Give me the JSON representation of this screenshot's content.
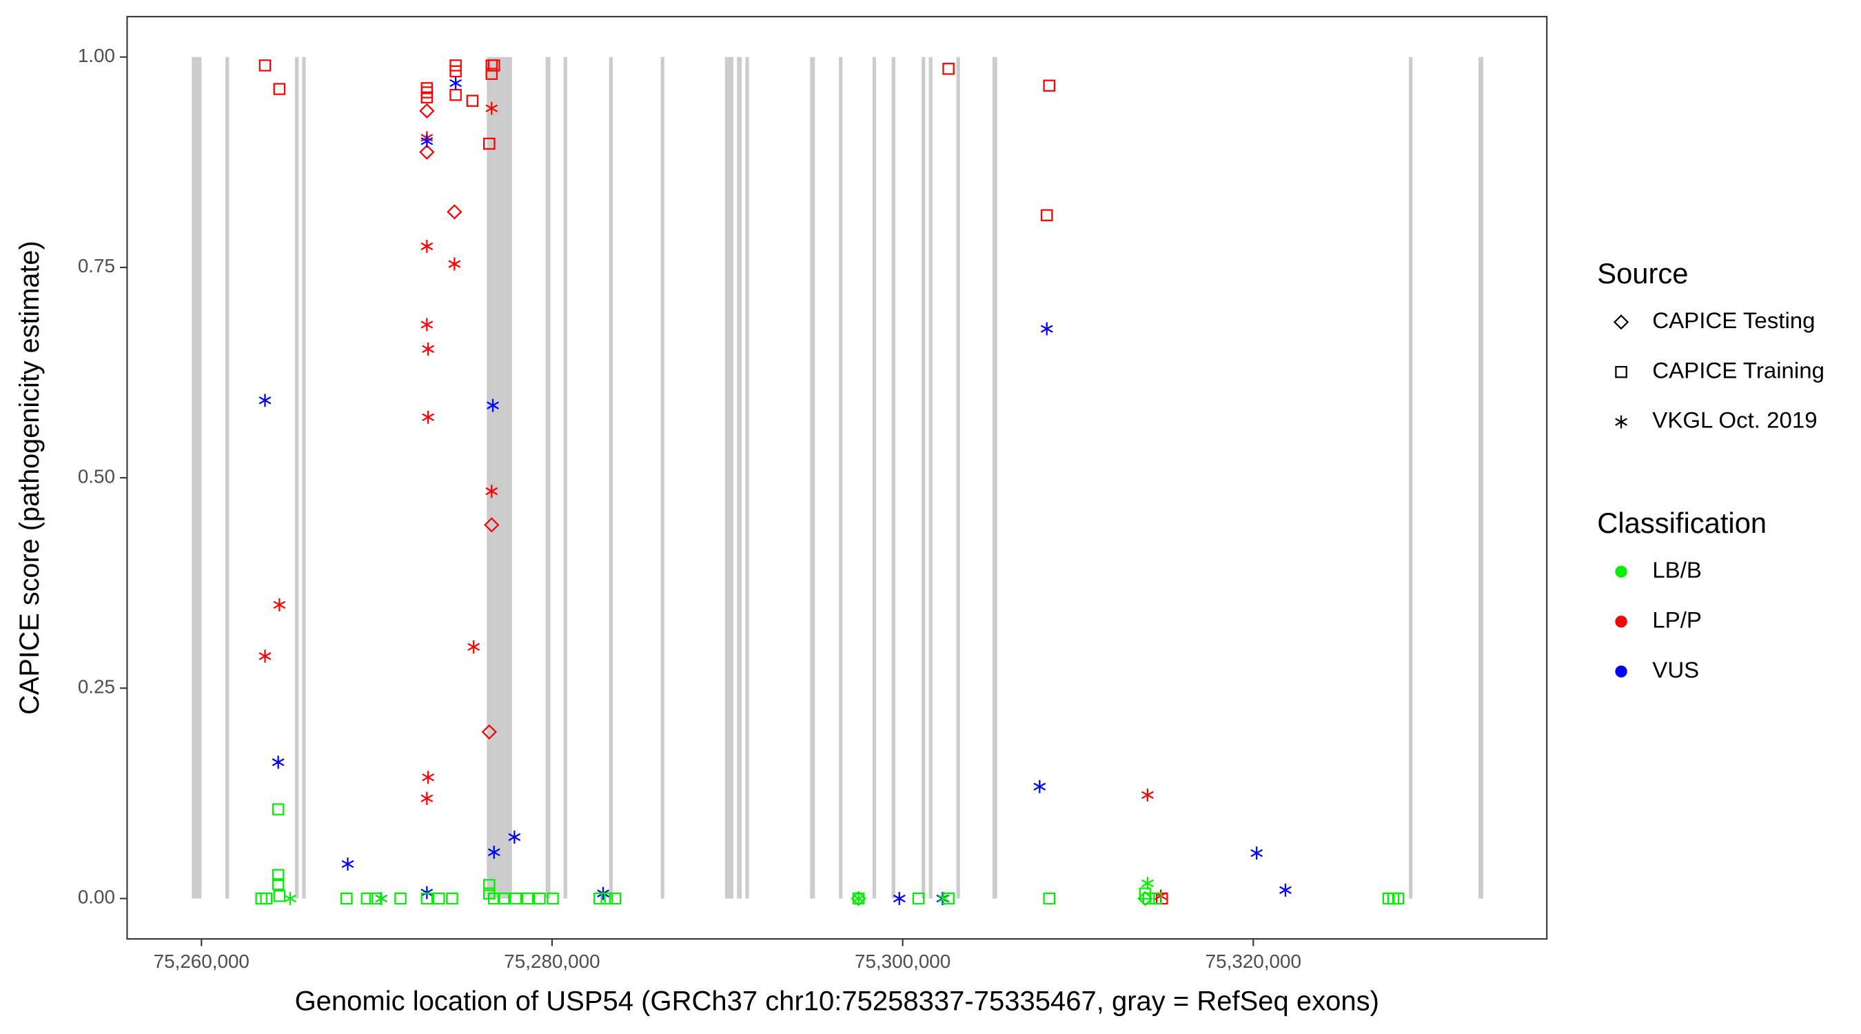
{
  "chart_data": {
    "type": "scatter",
    "x_label": "Genomic location of USP54 (GRCh37 chr10:75258337-75335467, gray = RefSeq exons)",
    "y_label": "CAPICE score (pathogenicity estimate)",
    "xlim": [
      75255759,
      75336745
    ],
    "ylim": [
      -0.048,
      1.048
    ],
    "xticks": [
      {
        "value": 75260000,
        "label": "75,260,000"
      },
      {
        "value": 75280000,
        "label": "75,280,000"
      },
      {
        "value": 75300000,
        "label": "75,300,000"
      },
      {
        "value": 75320000,
        "label": "75,320,000"
      }
    ],
    "yticks": [
      {
        "value": 0,
        "label": "0.00"
      },
      {
        "value": 0.25,
        "label": "0.25"
      },
      {
        "value": 0.5,
        "label": "0.50"
      },
      {
        "value": 0.75,
        "label": "0.75"
      },
      {
        "value": 1,
        "label": "1.00"
      }
    ],
    "exon_color": "#cccccc",
    "exons": [
      [
        75259453,
        75260000
      ],
      [
        75261368,
        75261573
      ],
      [
        75265335,
        75265540
      ],
      [
        75265746,
        75265951
      ],
      [
        75276279,
        75277716
      ],
      [
        75279631,
        75279904
      ],
      [
        75280657,
        75280862
      ],
      [
        75283256,
        75283461
      ],
      [
        75286197,
        75286402
      ],
      [
        75289865,
        75290344
      ],
      [
        75290549,
        75290822
      ],
      [
        75291028,
        75291233
      ],
      [
        75294721,
        75294995
      ],
      [
        75296363,
        75296568
      ],
      [
        75298278,
        75298483
      ],
      [
        75299372,
        75299578
      ],
      [
        75301082,
        75301288
      ],
      [
        75301493,
        75301698
      ],
      [
        75303066,
        75303271
      ],
      [
        75305118,
        75305392
      ],
      [
        75328879,
        75329084
      ],
      [
        75332846,
        75333120
      ]
    ],
    "source_title": "Source",
    "sources": [
      {
        "name": "CAPICE Testing",
        "shape": "diamond"
      },
      {
        "name": "CAPICE Training",
        "shape": "square"
      },
      {
        "name": "VKGL Oct. 2019",
        "shape": "asterisk"
      }
    ],
    "classification_title": "Classification",
    "classifications": [
      {
        "name": "LB/B",
        "color": "#00ee00"
      },
      {
        "name": "LP/P",
        "color": "#ff0000"
      },
      {
        "name": "VUS",
        "color": "#0000ff"
      }
    ],
    "series": [
      {
        "source": 1,
        "classification": 1,
        "x": [
          75263625,
          75264446,
          75272859,
          75272859,
          75272859,
          75274501,
          75274501,
          75274501,
          75275458,
          75276416,
          75276553,
          75276690,
          75276553,
          75302613,
          75308359,
          75308222,
          75314788
        ],
        "values": [
          0.99,
          0.962,
          0.963,
          0.958,
          0.952,
          0.99,
          0.983,
          0.955,
          0.948,
          0.897,
          0.99,
          0.99,
          0.98,
          0.986,
          0.966,
          0.812,
          0
        ]
      },
      {
        "source": 0,
        "classification": 1,
        "x": [
          75272859,
          75272859,
          75274432,
          75276553,
          75276416
        ],
        "values": [
          0.936,
          0.887,
          0.816,
          0.444,
          0.198
        ]
      },
      {
        "source": 2,
        "classification": 1,
        "x": [
          75263625,
          75264446,
          75272859,
          75272859,
          75272859,
          75272928,
          75272928,
          75272928,
          75272859,
          75274432,
          75275527,
          75276553,
          75276553,
          75313968,
          75314720
        ],
        "values": [
          0.288,
          0.349,
          0.904,
          0.775,
          0.682,
          0.653,
          0.572,
          0.144,
          0.119,
          0.754,
          0.299,
          0.939,
          0.484,
          0.123,
          0.003
        ]
      },
      {
        "source": 2,
        "classification": 2,
        "x": [
          75263625,
          75264378,
          75268345,
          75270260,
          75272859,
          75272859,
          75274501,
          75276621,
          75276690,
          75277852,
          75282914,
          75299809,
          75302271,
          75307812,
          75308222,
          75320192,
          75321834
        ],
        "values": [
          0.592,
          0.162,
          0.041,
          0,
          0.007,
          0.9,
          0.969,
          0.586,
          0.055,
          0.073,
          0.006,
          0,
          0,
          0.133,
          0.677,
          0.054,
          0.01
        ]
      },
      {
        "source": 1,
        "classification": 0,
        "x": [
          75263420,
          75263694,
          75264378,
          75264378,
          75264378,
          75264446,
          75268276,
          75269439,
          75269918,
          75271354,
          75272859,
          75273543,
          75274296,
          75276416,
          75276416,
          75276690,
          75277237,
          75277921,
          75278605,
          75279289,
          75280041,
          75282709,
          75283119,
          75283598,
          75297483,
          75300903,
          75302613,
          75308359,
          75313831,
          75314036,
          75314446,
          75327716,
          75327990,
          75328263
        ],
        "values": [
          0,
          0,
          0.106,
          0.028,
          0.017,
          0.003,
          0,
          0,
          0,
          0,
          0,
          0,
          0,
          0.016,
          0.006,
          0,
          0,
          0,
          0,
          0,
          0,
          0,
          0,
          0,
          0,
          0,
          0,
          0,
          0.006,
          0,
          0,
          0,
          0,
          0
        ]
      },
      {
        "source": 2,
        "classification": 0,
        "x": [
          75265062,
          75270260,
          75297483,
          75302340,
          75313968
        ],
        "values": [
          0,
          0,
          0,
          0,
          0.018
        ]
      },
      {
        "source": 0,
        "classification": 0,
        "x": [
          75297483,
          75313831
        ],
        "values": [
          0,
          0
        ]
      }
    ]
  }
}
